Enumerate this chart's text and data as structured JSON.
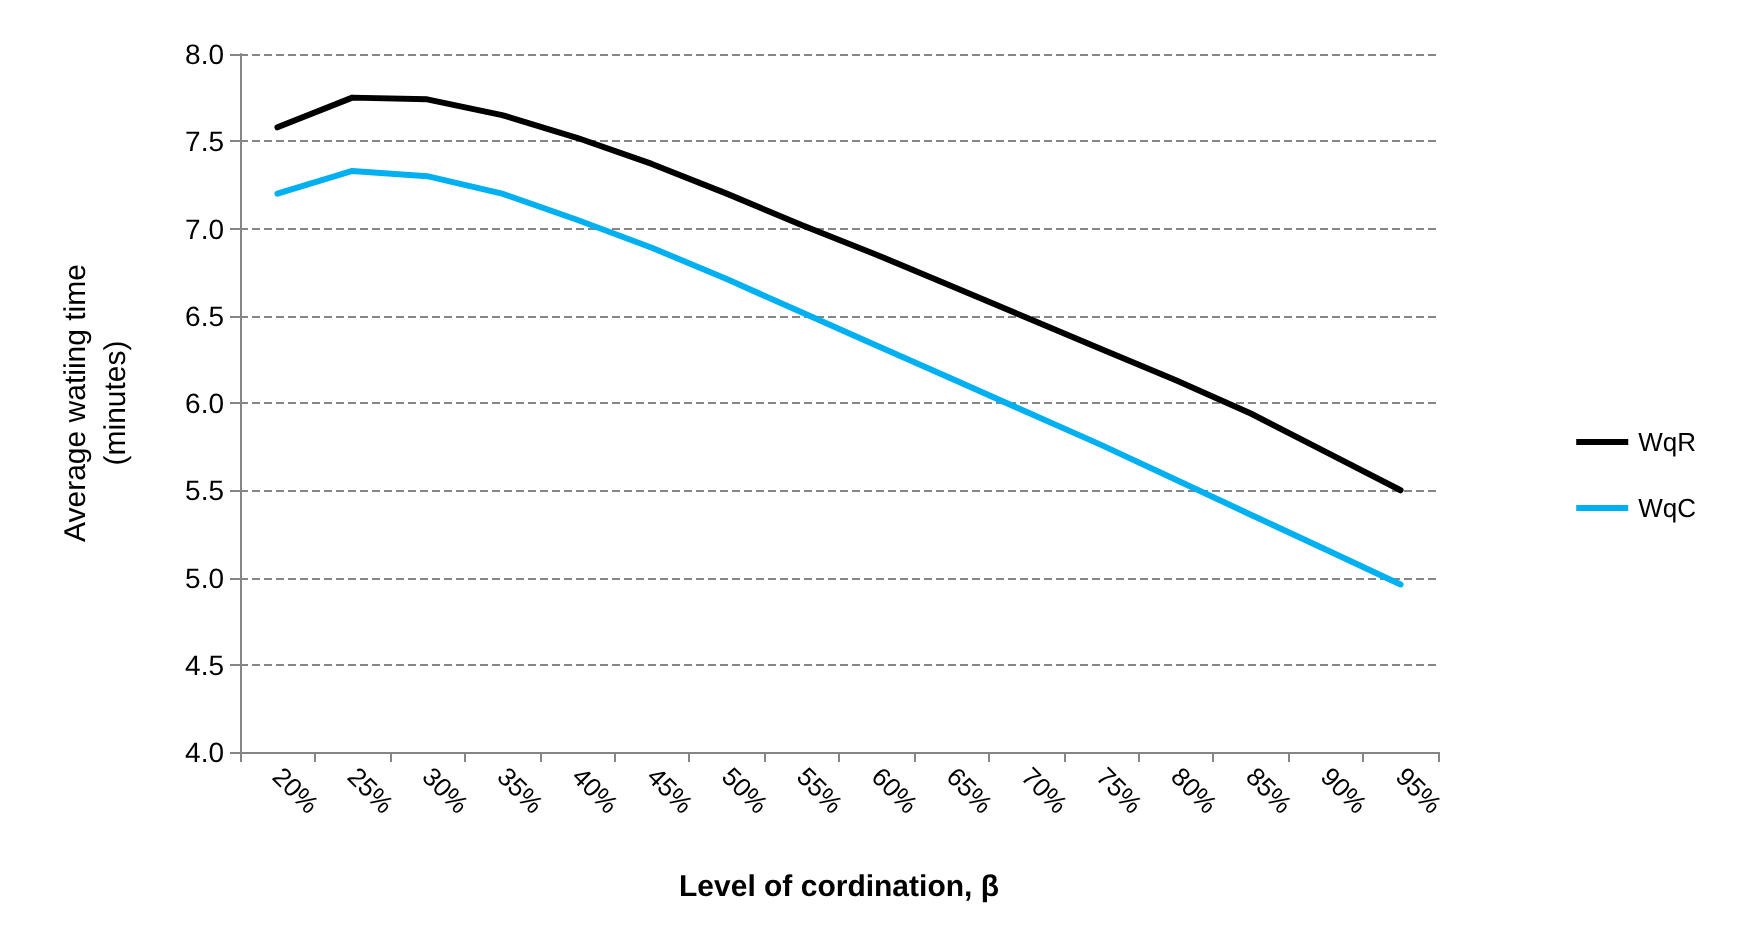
{
  "chart_data": {
    "type": "line",
    "xlabel": "Level of cordination, β",
    "ylabel": "Average watiing time\n(minutes)",
    "categories": [
      "20%",
      "25%",
      "30%",
      "35%",
      "40%",
      "45%",
      "50%",
      "55%",
      "60%",
      "65%",
      "70%",
      "75%",
      "80%",
      "85%",
      "90%",
      "95%"
    ],
    "series": [
      {
        "name": "WqR",
        "color": "#000000",
        "values": [
          7.58,
          7.75,
          7.74,
          7.65,
          7.52,
          7.37,
          7.2,
          7.02,
          6.85,
          6.67,
          6.49,
          6.31,
          6.13,
          5.94,
          5.72,
          5.5
        ]
      },
      {
        "name": "WqC",
        "color": "#00b0f0",
        "values": [
          7.2,
          7.33,
          7.3,
          7.2,
          7.05,
          6.89,
          6.71,
          6.52,
          6.33,
          6.14,
          5.95,
          5.76,
          5.56,
          5.36,
          5.16,
          4.96
        ]
      }
    ],
    "ylim": [
      4.0,
      8.0
    ],
    "yticks": [
      {
        "value": 4,
        "label": "4.0"
      },
      {
        "value": 4.5,
        "label": "4.5"
      },
      {
        "value": 5,
        "label": "5.0"
      },
      {
        "value": 5.5,
        "label": "5.5"
      },
      {
        "value": 6,
        "label": "6.0"
      },
      {
        "value": 6.5,
        "label": "6.5"
      },
      {
        "value": 7,
        "label": "7.0"
      },
      {
        "value": 7.5,
        "label": "7.5"
      },
      {
        "value": 8,
        "label": "8.0"
      }
    ],
    "grid": "y",
    "legend": "right",
    "marker": "none",
    "line_style": "solid"
  }
}
